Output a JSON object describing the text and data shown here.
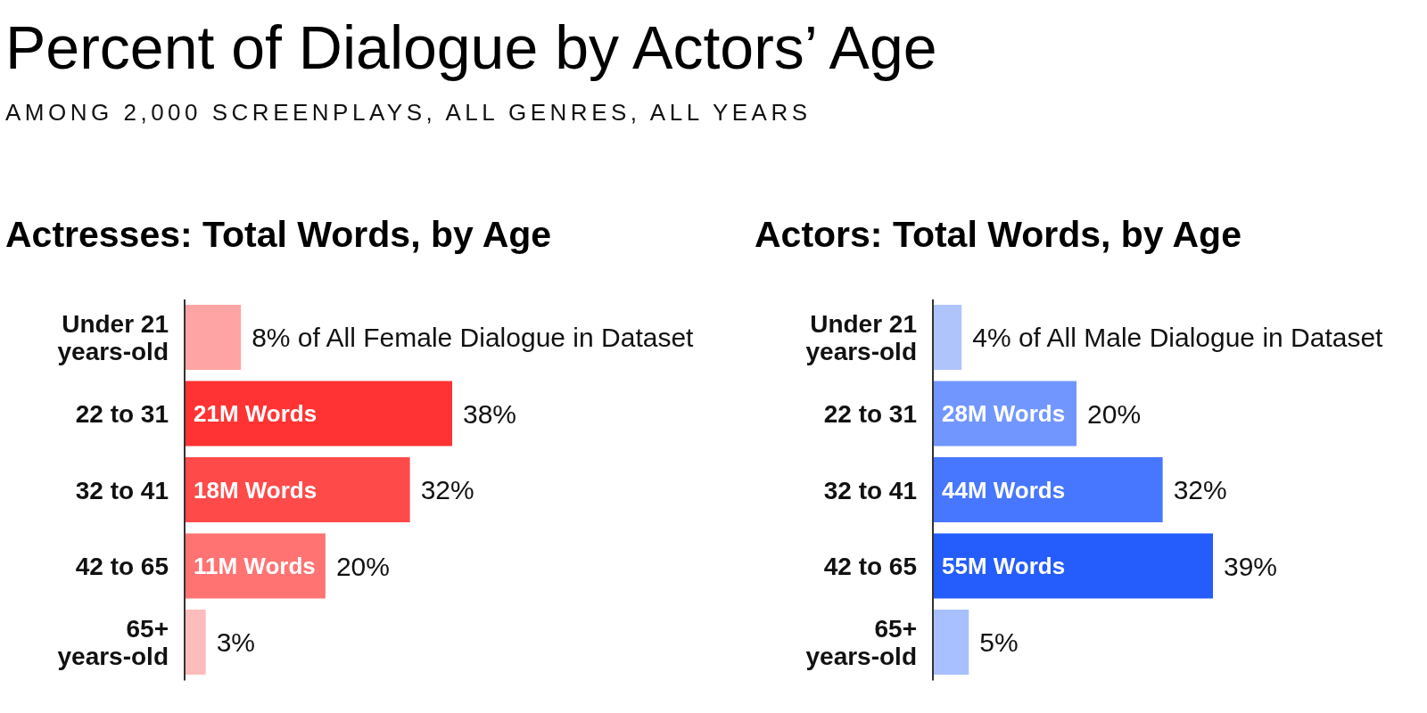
{
  "chart_data": [
    {
      "type": "other",
      "title": "Percent of Dialogue by Actors’ Age",
      "subtitle": "AMONG 2,000 SCREENPLAYS, ALL GENRES, ALL YEARS"
    },
    {
      "type": "bar",
      "orientation": "horizontal",
      "title": "Actresses: Total Words, by Age",
      "categories": [
        "Under 21 years-old",
        "22 to 31",
        "32 to 41",
        "42 to 65",
        "65+ years-old"
      ],
      "values": [
        8,
        38,
        32,
        20,
        3
      ],
      "colors": [
        "#ffa4a4",
        "#ff3333",
        "#ff4a4a",
        "#ff7373",
        "#ffbcbc"
      ],
      "value_labels": [
        "8% of All Female Dialogue in Dataset",
        "38%",
        "32%",
        "20%",
        "3%"
      ],
      "annotations": [
        {
          "text": "21M Words",
          "y": "22 to 31"
        },
        {
          "text": "18M Words",
          "y": "32 to 41"
        },
        {
          "text": "11M Words",
          "y": "42 to 65"
        }
      ],
      "tick_labels": "y"
    },
    {
      "type": "bar",
      "orientation": "horizontal",
      "title": "Actors: Total Words, by Age",
      "categories": [
        "Under 21 years-old",
        "22 to 31",
        "32 to 41",
        "42 to 65",
        "65+ years-old"
      ],
      "values": [
        4,
        20,
        32,
        39,
        5
      ],
      "colors": [
        "#b0c4fc",
        "#7197ff",
        "#4777ff",
        "#245dfb",
        "#a8c0ff"
      ],
      "value_labels": [
        "4% of All Male Dialogue in Dataset",
        "20%",
        "32%",
        "39%",
        "5%"
      ],
      "annotations": [
        {
          "text": "28M Words",
          "y": "22 to 31"
        },
        {
          "text": "44M Words",
          "y": "32 to 41"
        },
        {
          "text": "55M Words",
          "y": "42 to 65"
        }
      ],
      "tick_labels": "y"
    }
  ]
}
